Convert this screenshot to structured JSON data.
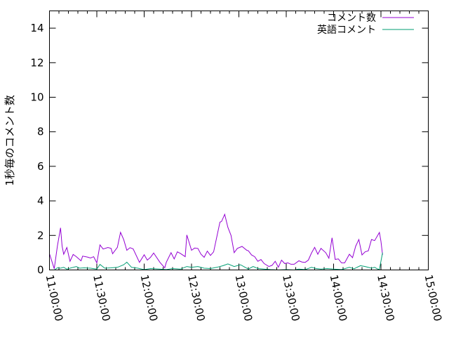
{
  "chart_data": {
    "type": "line",
    "title": "",
    "xlabel": "",
    "ylabel": "1秒毎のコメント数",
    "xlim": [
      "11:00:00",
      "15:00:00"
    ],
    "ylim": [
      0,
      15
    ],
    "grid": false,
    "legend_placement": "top-right",
    "x_ticks": [
      "11:00:00",
      "11:30:00",
      "12:00:00",
      "12:30:00",
      "13:00:00",
      "13:30:00",
      "14:00:00",
      "14:30:00",
      "15:00:00"
    ],
    "y_ticks": [
      "0",
      "2",
      "4",
      "6",
      "8",
      "10",
      "12",
      "14"
    ],
    "series": [
      {
        "name": "コメント数",
        "color": "#9400d3",
        "points": [
          [
            "11:00:00",
            0.94
          ],
          [
            "11:03:00",
            0.07
          ],
          [
            "11:05:00",
            1.38
          ],
          [
            "11:07:00",
            2.44
          ],
          [
            "11:08:00",
            1.38
          ],
          [
            "11:09:00",
            0.91
          ],
          [
            "11:11:00",
            1.3
          ],
          [
            "11:13:00",
            0.5
          ],
          [
            "11:15:00",
            0.9
          ],
          [
            "11:17:00",
            0.77
          ],
          [
            "11:20:00",
            0.53
          ],
          [
            "11:21:00",
            0.8
          ],
          [
            "11:24:00",
            0.75
          ],
          [
            "11:26:00",
            0.69
          ],
          [
            "11:28:00",
            0.77
          ],
          [
            "11:30:00",
            0.41
          ],
          [
            "11:32:00",
            1.45
          ],
          [
            "11:34:00",
            1.21
          ],
          [
            "11:37:00",
            1.3
          ],
          [
            "11:39:00",
            1.25
          ],
          [
            "11:40:00",
            0.94
          ],
          [
            "11:43:00",
            1.31
          ],
          [
            "11:45:00",
            2.18
          ],
          [
            "11:47:00",
            1.76
          ],
          [
            "11:49:00",
            1.14
          ],
          [
            "11:51:00",
            1.29
          ],
          [
            "11:53:00",
            1.22
          ],
          [
            "11:57:00",
            0.44
          ],
          [
            "12:00:00",
            0.88
          ],
          [
            "12:02:00",
            0.57
          ],
          [
            "12:04:00",
            0.73
          ],
          [
            "12:06:00",
            0.98
          ],
          [
            "12:10:00",
            0.44
          ],
          [
            "12:13:00",
            0.12
          ],
          [
            "12:14:00",
            0.44
          ],
          [
            "12:17:00",
            1.0
          ],
          [
            "12:19:00",
            0.64
          ],
          [
            "12:21:00",
            1.05
          ],
          [
            "12:23:00",
            0.95
          ],
          [
            "12:26:00",
            0.77
          ],
          [
            "12:27:00",
            2.03
          ],
          [
            "12:30:00",
            1.14
          ],
          [
            "12:32:00",
            1.27
          ],
          [
            "12:34:00",
            1.25
          ],
          [
            "12:36:00",
            0.91
          ],
          [
            "12:38:00",
            0.73
          ],
          [
            "12:40:00",
            1.09
          ],
          [
            "12:42:00",
            0.84
          ],
          [
            "12:44:00",
            1.05
          ],
          [
            "12:48:00",
            2.77
          ],
          [
            "12:49:00",
            2.81
          ],
          [
            "12:51:00",
            3.22
          ],
          [
            "12:53:00",
            2.47
          ],
          [
            "12:55:00",
            2.0
          ],
          [
            "12:57:00",
            1.0
          ],
          [
            "12:59:00",
            1.25
          ],
          [
            "13:02:00",
            1.36
          ],
          [
            "13:05:00",
            1.14
          ],
          [
            "13:06:00",
            1.11
          ],
          [
            "13:08:00",
            0.87
          ],
          [
            "13:10:00",
            0.77
          ],
          [
            "13:12:00",
            0.5
          ],
          [
            "13:14:00",
            0.6
          ],
          [
            "13:16:00",
            0.37
          ],
          [
            "13:19:00",
            0.2
          ],
          [
            "13:21:00",
            0.27
          ],
          [
            "13:23:00",
            0.5
          ],
          [
            "13:25:00",
            0.16
          ],
          [
            "13:27:00",
            0.57
          ],
          [
            "13:29:00",
            0.37
          ],
          [
            "13:31:00",
            0.41
          ],
          [
            "13:33:00",
            0.33
          ],
          [
            "13:35:00",
            0.33
          ],
          [
            "13:38:00",
            0.53
          ],
          [
            "13:40:00",
            0.46
          ],
          [
            "13:42:00",
            0.44
          ],
          [
            "13:44:00",
            0.57
          ],
          [
            "13:46:00",
            0.98
          ],
          [
            "13:48:00",
            1.31
          ],
          [
            "13:50:00",
            0.91
          ],
          [
            "13:52:00",
            1.25
          ],
          [
            "13:55:00",
            1.0
          ],
          [
            "13:57:00",
            0.68
          ],
          [
            "13:59:00",
            1.86
          ],
          [
            "14:01:00",
            0.61
          ],
          [
            "14:03:00",
            0.64
          ],
          [
            "14:05:00",
            0.41
          ],
          [
            "14:07:00",
            0.41
          ],
          [
            "14:10:00",
            0.91
          ],
          [
            "14:12:00",
            0.71
          ],
          [
            "14:14:00",
            1.38
          ],
          [
            "14:16:00",
            1.76
          ],
          [
            "14:18:00",
            0.87
          ],
          [
            "14:20:00",
            1.05
          ],
          [
            "14:22:00",
            1.11
          ],
          [
            "14:24:00",
            1.76
          ],
          [
            "14:26:00",
            1.7
          ],
          [
            "14:29:00",
            2.17
          ],
          [
            "14:30:00",
            1.66
          ],
          [
            "14:31:00",
            0.87
          ]
        ]
      },
      {
        "name": "英語コメント",
        "color": "#009e73",
        "points": [
          [
            "11:00:00",
            0.0
          ],
          [
            "11:03:00",
            0.0
          ],
          [
            "11:05:00",
            0.12
          ],
          [
            "11:07:00",
            0.1
          ],
          [
            "11:09:00",
            0.15
          ],
          [
            "11:11:00",
            0.05
          ],
          [
            "11:13:00",
            0.1
          ],
          [
            "11:17:00",
            0.2
          ],
          [
            "11:19:00",
            0.1
          ],
          [
            "11:22:00",
            0.12
          ],
          [
            "11:26:00",
            0.1
          ],
          [
            "11:30:00",
            0.05
          ],
          [
            "11:32:00",
            0.32
          ],
          [
            "11:35:00",
            0.1
          ],
          [
            "11:39:00",
            0.12
          ],
          [
            "11:43:00",
            0.15
          ],
          [
            "11:47:00",
            0.3
          ],
          [
            "11:49:00",
            0.45
          ],
          [
            "11:52:00",
            0.15
          ],
          [
            "11:56:00",
            0.1
          ],
          [
            "12:00:00",
            0.02
          ],
          [
            "12:04:00",
            0.08
          ],
          [
            "12:10:00",
            0.05
          ],
          [
            "12:14:00",
            0.02
          ],
          [
            "12:18:00",
            0.08
          ],
          [
            "12:23:00",
            0.05
          ],
          [
            "12:27:00",
            0.2
          ],
          [
            "12:30:00",
            0.15
          ],
          [
            "12:34:00",
            0.2
          ],
          [
            "12:38:00",
            0.1
          ],
          [
            "12:42:00",
            0.08
          ],
          [
            "12:46:00",
            0.15
          ],
          [
            "12:50:00",
            0.25
          ],
          [
            "12:53:00",
            0.35
          ],
          [
            "12:57:00",
            0.2
          ],
          [
            "13:01:00",
            0.3
          ],
          [
            "13:04:00",
            0.15
          ],
          [
            "13:06:00",
            0.05
          ],
          [
            "13:09:00",
            0.2
          ],
          [
            "13:12:00",
            0.08
          ],
          [
            "13:16:00",
            0.05
          ],
          [
            "13:20:00",
            0.02
          ],
          [
            "13:25:00",
            0.0
          ],
          [
            "13:30:00",
            0.02
          ],
          [
            "13:35:00",
            0.0
          ],
          [
            "13:38:00",
            0.05
          ],
          [
            "13:42:00",
            0.02
          ],
          [
            "13:46:00",
            0.15
          ],
          [
            "13:49:00",
            0.08
          ],
          [
            "13:52:00",
            0.05
          ],
          [
            "13:56:00",
            0.08
          ],
          [
            "14:00:00",
            0.05
          ],
          [
            "14:05:00",
            0.02
          ],
          [
            "14:10:00",
            0.15
          ],
          [
            "14:13:00",
            0.07
          ],
          [
            "14:17:00",
            0.25
          ],
          [
            "14:20:00",
            0.2
          ],
          [
            "14:24:00",
            0.1
          ],
          [
            "14:26:00",
            0.15
          ],
          [
            "14:28:00",
            0.05
          ],
          [
            "14:29:00",
            0.03
          ],
          [
            "14:31:00",
            1.0
          ]
        ]
      }
    ]
  }
}
